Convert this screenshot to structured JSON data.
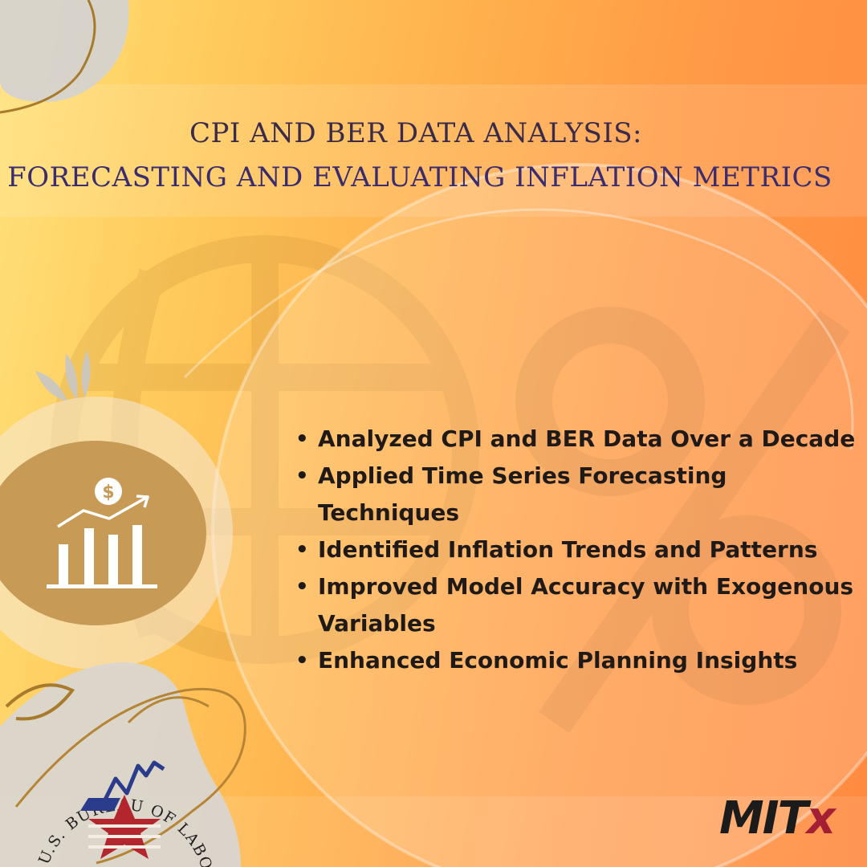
{
  "title": {
    "line1": "CPI AND BER DATA ANALYSIS:",
    "line2": "FORECASTING AND EVALUATING INFLATION METRICS"
  },
  "bullets": [
    "Analyzed CPI and BER Data Over a Decade",
    "Applied Time Series Forecasting Techniques",
    "Identified Inflation Trends and Patterns",
    "Improved Model Accuracy with Exogenous Variables",
    "Enhanced Economic Planning Insights"
  ],
  "icon": {
    "name": "growth-chart-dollar-icon",
    "coin_symbol": "$"
  },
  "seal": {
    "name": "us-bureau-of-labor-statistics-seal",
    "text": "U.S. BUREAU OF LABOR STATISTICS"
  },
  "brand": {
    "main": "MIT",
    "accent": "x"
  },
  "colors": {
    "title": "#3b2b4a",
    "bullet_text": "#1f1a17",
    "icon_disc": "#c79a55",
    "brand_main": "#1b1b1b",
    "brand_accent": "#a31f34",
    "seal_red": "#b3262d",
    "seal_blue": "#2c3c8c"
  }
}
